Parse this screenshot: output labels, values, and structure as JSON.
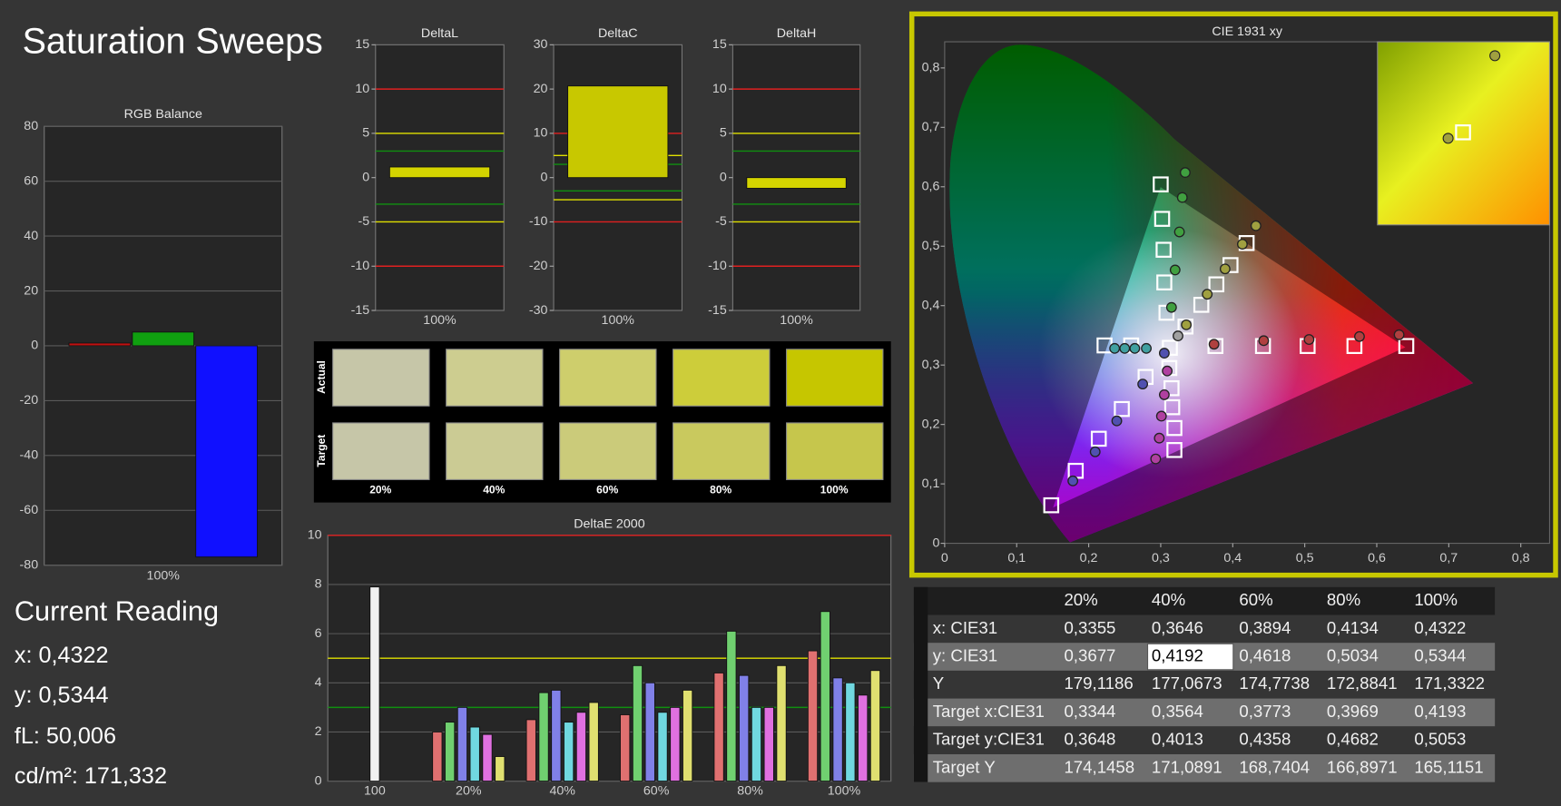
{
  "title": "Saturation Sweeps",
  "current_reading": {
    "heading": "Current Reading",
    "lines": [
      "x: 0,4322",
      "y: 0,5344",
      "fL: 50,006",
      "cd/m²: 171,332"
    ]
  },
  "table": {
    "columns": [
      "20%",
      "40%",
      "60%",
      "80%",
      "100%"
    ],
    "rows": [
      {
        "label": "x: CIE31",
        "cells": [
          "0,3355",
          "0,3646",
          "0,3894",
          "0,4134",
          "0,4322"
        ]
      },
      {
        "label": "y: CIE31",
        "cells": [
          "0,3677",
          "0,4192",
          "0,4618",
          "0,5034",
          "0,5344"
        ]
      },
      {
        "label": "Y",
        "cells": [
          "179,1186",
          "177,0673",
          "174,7738",
          "172,8841",
          "171,3322"
        ]
      },
      {
        "label": "Target x:CIE31",
        "cells": [
          "0,3344",
          "0,3564",
          "0,3773",
          "0,3969",
          "0,4193"
        ]
      },
      {
        "label": "Target y:CIE31",
        "cells": [
          "0,3648",
          "0,4013",
          "0,4358",
          "0,4682",
          "0,5053"
        ]
      },
      {
        "label": "Target Y",
        "cells": [
          "174,1458",
          "171,0891",
          "168,7404",
          "166,8971",
          "165,1151"
        ]
      }
    ]
  },
  "chart_data": [
    {
      "type": "bar",
      "title": "RGB Balance",
      "categories": [
        "100%"
      ],
      "series": [
        {
          "color": "#c01010",
          "values": [
            1
          ]
        },
        {
          "color": "#10a010",
          "values": [
            5
          ]
        },
        {
          "color": "#1010ff",
          "values": [
            -77
          ]
        }
      ],
      "ylim": [
        -80,
        80
      ],
      "yticks": [
        -80,
        -60,
        -40,
        -20,
        0,
        20,
        40,
        60,
        80
      ],
      "grid": true
    },
    {
      "type": "bar",
      "title": "DeltaL",
      "categories": [
        "100%"
      ],
      "values": [
        1.2
      ],
      "color": "#d4d400",
      "ylim": [
        -15,
        15
      ],
      "yticks": [
        -15,
        -10,
        -5,
        0,
        5,
        10,
        15
      ],
      "reference_lines": [
        {
          "value": 10,
          "color": "#e02020"
        },
        {
          "value": -10,
          "color": "#e02020"
        },
        {
          "value": 5,
          "color": "#e0e000"
        },
        {
          "value": -5,
          "color": "#e0e000"
        },
        {
          "value": 3,
          "color": "#109010"
        },
        {
          "value": -3,
          "color": "#109010"
        }
      ]
    },
    {
      "type": "bar",
      "title": "DeltaC",
      "categories": [
        "100%"
      ],
      "values": [
        20.7
      ],
      "color": "#c8c800",
      "ylim": [
        -30,
        30
      ],
      "yticks": [
        -30,
        -20,
        -10,
        0,
        10,
        20,
        30
      ],
      "reference_lines": [
        {
          "value": 10,
          "color": "#e02020"
        },
        {
          "value": -10,
          "color": "#e02020"
        },
        {
          "value": 5,
          "color": "#e0e000"
        },
        {
          "value": -5,
          "color": "#e0e000"
        },
        {
          "value": 3,
          "color": "#109010"
        },
        {
          "value": -3,
          "color": "#109010"
        }
      ]
    },
    {
      "type": "bar",
      "title": "DeltaH",
      "categories": [
        "100%"
      ],
      "values": [
        -1.2
      ],
      "color": "#d4d400",
      "ylim": [
        -15,
        15
      ],
      "yticks": [
        -15,
        -10,
        -5,
        0,
        5,
        10,
        15
      ],
      "reference_lines": [
        {
          "value": 10,
          "color": "#e02020"
        },
        {
          "value": -10,
          "color": "#e02020"
        },
        {
          "value": 5,
          "color": "#e0e000"
        },
        {
          "value": -5,
          "color": "#e0e000"
        },
        {
          "value": 3,
          "color": "#109010"
        },
        {
          "value": -3,
          "color": "#109010"
        }
      ]
    },
    {
      "type": "swatches",
      "categories": [
        "20%",
        "40%",
        "60%",
        "80%",
        "100%"
      ],
      "rows": [
        {
          "name": "Actual",
          "colors": [
            "#c6c6a8",
            "#cdcd90",
            "#cece6c",
            "#cdcd3a",
            "#c6c600"
          ]
        },
        {
          "name": "Target",
          "colors": [
            "#c6c6a8",
            "#cbcb94",
            "#cbcb7a",
            "#c9c95e",
            "#c6c64c"
          ]
        }
      ]
    },
    {
      "type": "bar",
      "title": "DeltaE 2000",
      "categories": [
        "100",
        "20%",
        "40%",
        "60%",
        "80%",
        "100%"
      ],
      "series": [
        {
          "color": "#f0f0f0",
          "values": [
            7.9,
            null,
            null,
            null,
            null,
            null
          ]
        },
        {
          "color": "#e07070",
          "values": [
            null,
            2.0,
            2.5,
            2.7,
            4.4,
            5.3
          ]
        },
        {
          "color": "#70d070",
          "values": [
            null,
            2.4,
            3.6,
            4.7,
            6.1,
            6.9
          ]
        },
        {
          "color": "#8080e8",
          "values": [
            null,
            3.0,
            3.7,
            4.0,
            4.3,
            4.2
          ]
        },
        {
          "color": "#70d8e0",
          "values": [
            null,
            2.2,
            2.4,
            2.8,
            3.0,
            4.0
          ]
        },
        {
          "color": "#e070e0",
          "values": [
            null,
            1.9,
            2.8,
            3.0,
            3.0,
            3.5
          ]
        },
        {
          "color": "#e0e070",
          "values": [
            null,
            1.0,
            3.2,
            3.7,
            4.7,
            4.5
          ]
        }
      ],
      "ylim": [
        0,
        10
      ],
      "yticks": [
        0,
        2,
        4,
        6,
        8,
        10
      ],
      "grid": true,
      "reference_lines": [
        {
          "value": 10,
          "color": "#e02020"
        },
        {
          "value": 5,
          "color": "#e0e000"
        },
        {
          "value": 3,
          "color": "#109010"
        }
      ]
    },
    {
      "type": "scatter",
      "title": "CIE 1931 xy",
      "xlim": [
        0,
        0.84
      ],
      "ylim": [
        0,
        0.844
      ],
      "xticks": [
        0,
        {
          "value": 0.1,
          "label": "0,1"
        },
        {
          "value": 0.2,
          "label": "0,2"
        },
        {
          "value": 0.3,
          "label": "0,3"
        },
        {
          "value": 0.4,
          "label": "0,4"
        },
        {
          "value": 0.5,
          "label": "0,5"
        },
        {
          "value": 0.6,
          "label": "0,6"
        },
        {
          "value": 0.7,
          "label": "0,7"
        },
        {
          "value": 0.8,
          "label": "0,8"
        }
      ],
      "yticks": [
        0,
        {
          "value": 0.1,
          "label": "0,1"
        },
        {
          "value": 0.2,
          "label": "0,2"
        },
        {
          "value": 0.3,
          "label": "0,3"
        },
        {
          "value": 0.4,
          "label": "0,4"
        },
        {
          "value": 0.5,
          "label": "0,5"
        },
        {
          "value": 0.6,
          "label": "0,6"
        },
        {
          "value": 0.7,
          "label": "0,7"
        },
        {
          "value": 0.8,
          "label": "0,8"
        }
      ],
      "series": [
        {
          "marker": "square",
          "color": "#ffffff",
          "x": [
            0.3127,
            0.376,
            0.442,
            0.504,
            0.569,
            0.641,
            0.3,
            0.302,
            0.304,
            0.305,
            0.308,
            0.148,
            0.182,
            0.214,
            0.246,
            0.279,
            0.222,
            0.259,
            0.319,
            0.319,
            0.316,
            0.315,
            0.312,
            0.3344,
            0.3564,
            0.3773,
            0.3969,
            0.4193
          ],
          "y": [
            0.329,
            0.332,
            0.332,
            0.332,
            0.332,
            0.332,
            0.604,
            0.546,
            0.494,
            0.439,
            0.388,
            0.064,
            0.122,
            0.176,
            0.226,
            0.28,
            0.333,
            0.333,
            0.157,
            0.194,
            0.229,
            0.261,
            0.295,
            0.3648,
            0.4013,
            0.4358,
            0.4682,
            0.5053
          ]
        },
        {
          "marker": "circle",
          "color": "#b04040",
          "x": [
            0.374,
            0.443,
            0.506,
            0.576,
            0.631
          ],
          "y": [
            0.335,
            0.341,
            0.343,
            0.348,
            0.351
          ]
        },
        {
          "marker": "circle",
          "color": "#40a040",
          "x": [
            0.315,
            0.32,
            0.326,
            0.33,
            0.334
          ],
          "y": [
            0.397,
            0.46,
            0.524,
            0.582,
            0.624
          ]
        },
        {
          "marker": "circle",
          "color": "#5050b0",
          "x": [
            0.178,
            0.209,
            0.239,
            0.275,
            0.305
          ],
          "y": [
            0.105,
            0.154,
            0.206,
            0.268,
            0.32
          ]
        },
        {
          "marker": "circle",
          "color": "#40a0a0",
          "x": [
            0.236,
            0.25,
            0.264,
            0.28
          ],
          "y": [
            0.328,
            0.328,
            0.328,
            0.328
          ]
        },
        {
          "marker": "circle",
          "color": "#b040a0",
          "x": [
            0.293,
            0.298,
            0.301,
            0.305,
            0.309
          ],
          "y": [
            0.142,
            0.177,
            0.214,
            0.25,
            0.29
          ]
        },
        {
          "marker": "circle",
          "color": "#a0a040",
          "x": [
            0.3355,
            0.3646,
            0.3894,
            0.4134,
            0.4322
          ],
          "y": [
            0.3677,
            0.4192,
            0.4618,
            0.5034,
            0.5344
          ]
        },
        {
          "marker": "circle",
          "color": "#a0a0a0",
          "x": [
            0.324
          ],
          "y": [
            0.349
          ]
        }
      ]
    }
  ]
}
